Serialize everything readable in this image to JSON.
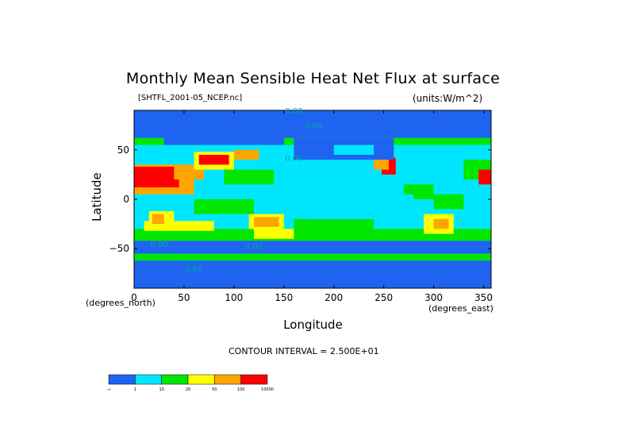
{
  "chart_data": {
    "type": "heatmap",
    "title": "Monthly Mean Sensible Heat Net Flux at surface",
    "source_label": "[SHTFL_2001-05_NCEP.nc]",
    "units_label": "(units:W/m^2)",
    "xlabel": "Longitude",
    "ylabel": "Latitude",
    "x_unit": "(degrees_east)",
    "y_unit": "(degrees_north)",
    "xlim": [
      0,
      357.5
    ],
    "ylim": [
      -90,
      90
    ],
    "x_ticks": [
      0,
      50,
      100,
      150,
      200,
      250,
      300,
      350
    ],
    "y_ticks": [
      50,
      0,
      -50
    ],
    "contour_interval": "CONTOUR INTERVAL = 2.500E+01",
    "contour_labels": [
      "0.00",
      "0.00",
      "0.00",
      "0.00",
      "0.00",
      "0.00"
    ],
    "colorbar": {
      "labels": [
        "-∞",
        "1",
        "10",
        "20",
        "50",
        "100",
        "10000"
      ],
      "colors": [
        "#1e64f0",
        "#00e6ff",
        "#00e600",
        "#ffff00",
        "#ffa500",
        "#ff0000"
      ]
    }
  }
}
